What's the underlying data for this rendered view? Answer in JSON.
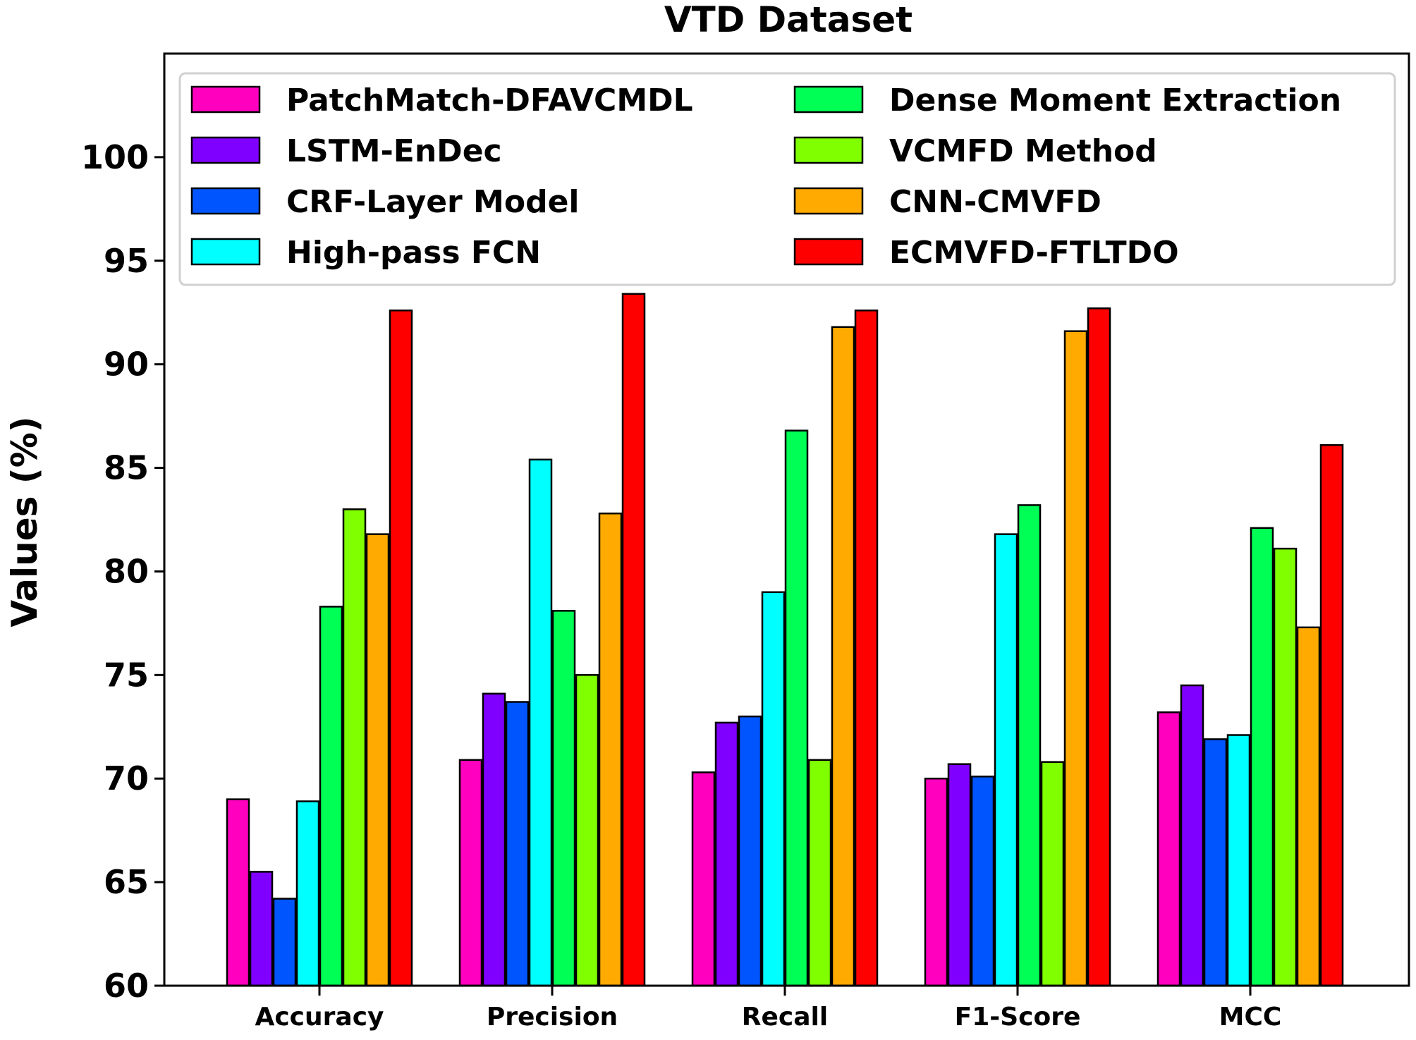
{
  "chart_data": {
    "type": "bar",
    "title": "VTD Dataset",
    "xlabel": "",
    "ylabel": "Values (%)",
    "ylim": [
      60,
      105
    ],
    "yticks": [
      60,
      65,
      70,
      75,
      80,
      85,
      90,
      95,
      100
    ],
    "grid": false,
    "legend_position": "top",
    "categories": [
      "Accuracy",
      "Precision",
      "Recall",
      "F1-Score",
      "MCC"
    ],
    "series": [
      {
        "name": "PatchMatch-DFAVCMDL",
        "color": "#ff00bf",
        "values": [
          69.0,
          70.9,
          70.3,
          70.0,
          73.2
        ]
      },
      {
        "name": "LSTM-EnDec",
        "color": "#8000ff",
        "values": [
          65.5,
          74.1,
          72.7,
          70.7,
          74.5
        ]
      },
      {
        "name": "CRF-Layer Model",
        "color": "#0055ff",
        "values": [
          64.2,
          73.7,
          73.0,
          70.1,
          71.9
        ]
      },
      {
        "name": "High-pass FCN",
        "color": "#00ffff",
        "values": [
          68.9,
          85.4,
          79.0,
          81.8,
          72.1
        ]
      },
      {
        "name": "Dense Moment Extraction",
        "color": "#00ff55",
        "values": [
          78.3,
          78.1,
          86.8,
          83.2,
          82.1
        ]
      },
      {
        "name": "VCMFD Method",
        "color": "#80ff00",
        "values": [
          83.0,
          75.0,
          70.9,
          70.8,
          81.1
        ]
      },
      {
        "name": "CNN-CMVFD",
        "color": "#ffaa00",
        "values": [
          81.8,
          82.8,
          91.8,
          91.6,
          77.3
        ]
      },
      {
        "name": "ECMVFD-FTLTDO",
        "color": "#ff0000",
        "values": [
          92.6,
          93.4,
          92.6,
          92.7,
          86.1
        ]
      }
    ]
  }
}
